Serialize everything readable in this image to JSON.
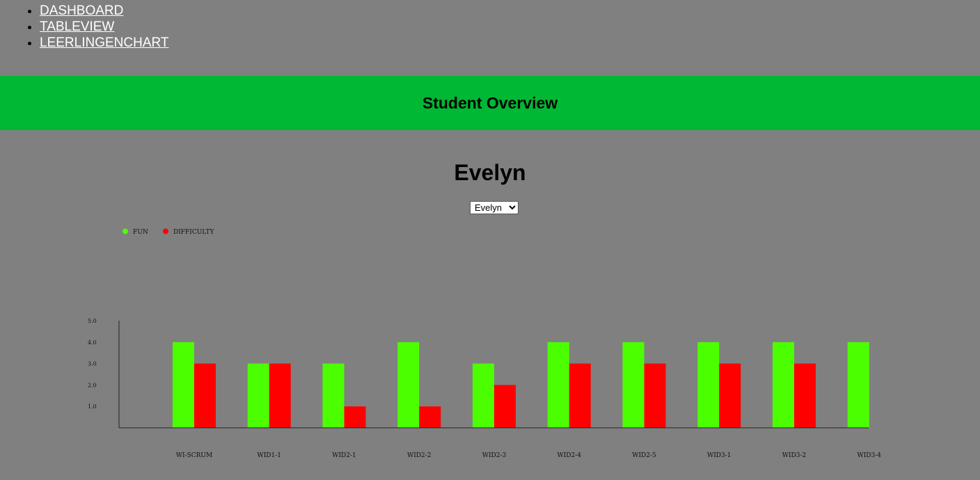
{
  "nav": {
    "items": [
      {
        "label": "DASHBOARD"
      },
      {
        "label": "TABLEVIEW"
      },
      {
        "label": "LEERLINGENCHART"
      }
    ]
  },
  "banner": {
    "title": "Student Overview"
  },
  "student": {
    "name": "Evelyn",
    "select_value": "Evelyn"
  },
  "colors": {
    "banner": "#00b833",
    "fun": "#4cff00",
    "difficulty": "#ff0000",
    "background": "#808080"
  },
  "chart_data": {
    "type": "bar",
    "categories": [
      "WI-SCRUM",
      "WID1-1",
      "WID2-1",
      "WID2-2",
      "WID2-3",
      "WID2-4",
      "WID2-5",
      "WID3-1",
      "WID3-2",
      "WID3-4"
    ],
    "series": [
      {
        "name": "FUN",
        "color": "#4cff00",
        "values": [
          4,
          3,
          3,
          4,
          3,
          4,
          4,
          4,
          4,
          4
        ]
      },
      {
        "name": "DIFFICULTY",
        "color": "#ff0000",
        "values": [
          3,
          3,
          1,
          1,
          2,
          3,
          3,
          3,
          3,
          0
        ]
      }
    ],
    "yticks": [
      "1.0",
      "2.0",
      "3.0",
      "4.0",
      "5.0"
    ],
    "ylim": [
      0,
      5
    ],
    "grid": false,
    "legend": "top-left"
  }
}
